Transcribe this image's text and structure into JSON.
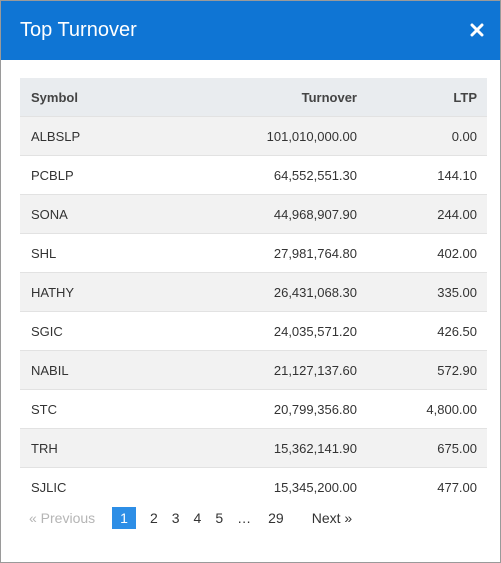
{
  "modal": {
    "title": "Top Turnover",
    "close_icon": "close-icon"
  },
  "table": {
    "headers": {
      "symbol": "Symbol",
      "turnover": "Turnover",
      "ltp": "LTP"
    },
    "rows": [
      {
        "symbol": "ALBSLP",
        "turnover": "101,010,000.00",
        "ltp": "0.00"
      },
      {
        "symbol": "PCBLP",
        "turnover": "64,552,551.30",
        "ltp": "144.10"
      },
      {
        "symbol": "SONA",
        "turnover": "44,968,907.90",
        "ltp": "244.00"
      },
      {
        "symbol": "SHL",
        "turnover": "27,981,764.80",
        "ltp": "402.00"
      },
      {
        "symbol": "HATHY",
        "turnover": "26,431,068.30",
        "ltp": "335.00"
      },
      {
        "symbol": "SGIC",
        "turnover": "24,035,571.20",
        "ltp": "426.50"
      },
      {
        "symbol": "NABIL",
        "turnover": "21,127,137.60",
        "ltp": "572.90"
      },
      {
        "symbol": "STC",
        "turnover": "20,799,356.80",
        "ltp": "4,800.00"
      },
      {
        "symbol": "TRH",
        "turnover": "15,362,141.90",
        "ltp": "675.00"
      },
      {
        "symbol": "SJLIC",
        "turnover": "15,345,200.00",
        "ltp": "477.00"
      }
    ]
  },
  "pagination": {
    "previous": "« Previous",
    "pages": [
      "1",
      "2",
      "3",
      "4",
      "5"
    ],
    "ellipsis": "…",
    "last": "29",
    "next": "Next »",
    "current": "1"
  },
  "colors": {
    "header_bg": "#0f75d4",
    "active_page": "#2d8ee6"
  }
}
